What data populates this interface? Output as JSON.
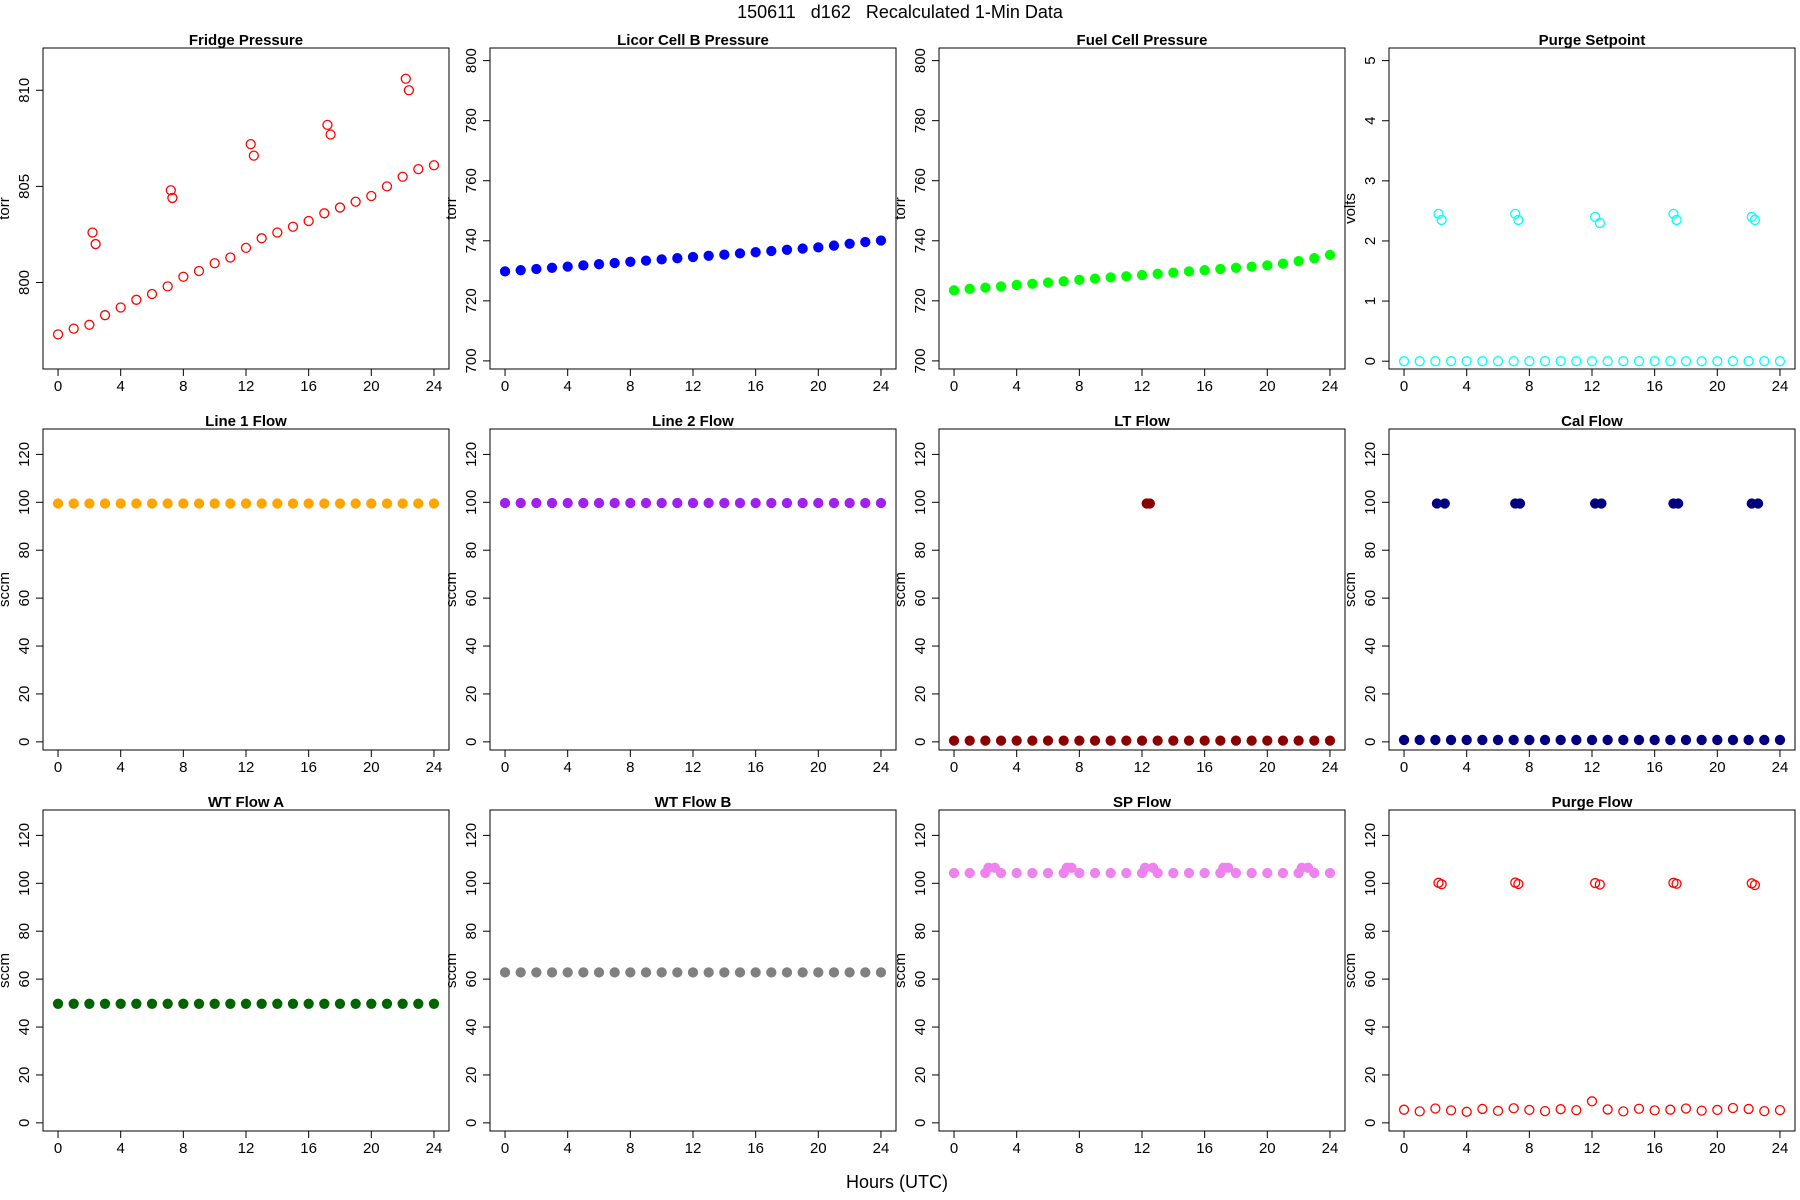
{
  "title": "150611   d162   Recalculated 1-Min Data",
  "xlabel": "Hours (UTC)",
  "chart_data": [
    {
      "type": "scatter",
      "title": "Fridge Pressure",
      "ylabel": "torr",
      "color": "#ff0000",
      "marker": "open",
      "x": [
        0,
        1,
        2,
        3,
        4,
        5,
        6,
        7,
        8,
        9,
        10,
        11,
        12,
        13,
        14,
        15,
        16,
        17,
        18,
        19,
        20,
        21,
        22,
        23,
        24,
        2.2,
        2.4,
        7.2,
        7.3,
        12.3,
        12.5,
        17.2,
        17.4,
        22.2,
        22.4
      ],
      "values": [
        797.3,
        797.6,
        797.8,
        798.3,
        798.7,
        799.1,
        799.4,
        799.8,
        800.3,
        800.6,
        801,
        801.3,
        801.8,
        802.3,
        802.6,
        802.9,
        803.2,
        803.6,
        803.9,
        804.2,
        804.5,
        805,
        805.5,
        805.9,
        806.1,
        802.6,
        802.0,
        804.8,
        804.4,
        807.2,
        806.6,
        808.2,
        807.7,
        810.6,
        810.0
      ],
      "xlim": [
        -0.96,
        24.96
      ],
      "xticks": [
        0,
        4,
        8,
        12,
        16,
        20,
        24
      ],
      "ylim": [
        795.5,
        812.2
      ],
      "yticks": [
        800,
        805,
        810
      ]
    },
    {
      "type": "scatter",
      "title": "Licor Cell B Pressure",
      "ylabel": "torr",
      "color": "#0000ff",
      "marker": "filled",
      "x": [
        0,
        1,
        2,
        3,
        4,
        5,
        6,
        7,
        8,
        9,
        10,
        11,
        12,
        13,
        14,
        15,
        16,
        17,
        18,
        19,
        20,
        21,
        22,
        23,
        24
      ],
      "values": [
        729.8,
        730.2,
        730.6,
        731.0,
        731.4,
        731.8,
        732.2,
        732.6,
        733.0,
        733.4,
        733.8,
        734.2,
        734.6,
        735.0,
        735.4,
        735.8,
        736.2,
        736.6,
        737.0,
        737.4,
        737.8,
        738.4,
        739.0,
        739.6,
        740.1
      ],
      "xlim": [
        -0.96,
        24.96
      ],
      "xticks": [
        0,
        4,
        8,
        12,
        16,
        20,
        24
      ],
      "ylim": [
        697.3,
        804.2
      ],
      "yticks": [
        700,
        720,
        740,
        760,
        780,
        800
      ]
    },
    {
      "type": "scatter",
      "title": "Fuel Cell Pressure",
      "ylabel": "torr",
      "color": "#00ff00",
      "marker": "filled",
      "x": [
        0,
        1,
        2,
        3,
        4,
        5,
        6,
        7,
        8,
        9,
        10,
        11,
        12,
        13,
        14,
        15,
        16,
        17,
        18,
        19,
        20,
        21,
        22,
        23,
        24
      ],
      "values": [
        723.5,
        724.0,
        724.4,
        724.8,
        725.3,
        725.7,
        726.1,
        726.5,
        727.0,
        727.4,
        727.8,
        728.2,
        728.6,
        729.0,
        729.4,
        729.8,
        730.2,
        730.6,
        731.0,
        731.4,
        731.8,
        732.4,
        733.2,
        734.2,
        735.3
      ],
      "xlim": [
        -0.96,
        24.96
      ],
      "xticks": [
        0,
        4,
        8,
        12,
        16,
        20,
        24
      ],
      "ylim": [
        697.3,
        804.2
      ],
      "yticks": [
        700,
        720,
        740,
        760,
        780,
        800
      ]
    },
    {
      "type": "scatter",
      "title": "Purge Setpoint",
      "ylabel": "volts",
      "color": "#00ffff",
      "marker": "open",
      "x": [
        0,
        1,
        2,
        3,
        4,
        5,
        6,
        7,
        8,
        9,
        10,
        11,
        12,
        13,
        14,
        15,
        16,
        17,
        18,
        19,
        20,
        21,
        22,
        23,
        24,
        2.2,
        2.4,
        7.1,
        7.3,
        12.2,
        12.5,
        17.2,
        17.4,
        22.2,
        22.4
      ],
      "values": [
        0,
        0,
        0,
        0,
        0,
        0,
        0,
        0,
        0,
        0,
        0,
        0,
        0,
        0,
        0,
        0,
        0,
        0,
        0,
        0,
        0,
        0,
        0,
        0,
        0,
        2.45,
        2.35,
        2.45,
        2.35,
        2.4,
        2.3,
        2.45,
        2.35,
        2.4,
        2.35
      ],
      "xlim": [
        -0.96,
        24.96
      ],
      "xticks": [
        0,
        4,
        8,
        12,
        16,
        20,
        24
      ],
      "ylim": [
        -0.13,
        5.21
      ],
      "yticks": [
        0,
        1,
        2,
        3,
        4,
        5
      ]
    },
    {
      "type": "scatter",
      "title": "Line 1 Flow",
      "ylabel": "sccm",
      "color": "#ffa500",
      "marker": "filled",
      "x": [
        0,
        1,
        2,
        3,
        4,
        5,
        6,
        7,
        8,
        9,
        10,
        11,
        12,
        13,
        14,
        15,
        16,
        17,
        18,
        19,
        20,
        21,
        22,
        23,
        24
      ],
      "values": [
        99.5,
        99.5,
        99.5,
        99.5,
        99.5,
        99.5,
        99.5,
        99.5,
        99.5,
        99.5,
        99.5,
        99.5,
        99.5,
        99.5,
        99.5,
        99.5,
        99.5,
        99.5,
        99.5,
        99.5,
        99.5,
        99.5,
        99.5,
        99.5,
        99.5
      ],
      "xlim": [
        -0.96,
        24.96
      ],
      "xticks": [
        0,
        4,
        8,
        12,
        16,
        20,
        24
      ],
      "ylim": [
        -3.4,
        130.6
      ],
      "yticks": [
        0,
        20,
        40,
        60,
        80,
        100,
        120
      ]
    },
    {
      "type": "scatter",
      "title": "Line 2 Flow",
      "ylabel": "sccm",
      "color": "#a020f0",
      "marker": "filled",
      "x": [
        0,
        1,
        2,
        3,
        4,
        5,
        6,
        7,
        8,
        9,
        10,
        11,
        12,
        13,
        14,
        15,
        16,
        17,
        18,
        19,
        20,
        21,
        22,
        23,
        24
      ],
      "values": [
        99.7,
        99.7,
        99.7,
        99.7,
        99.7,
        99.7,
        99.7,
        99.7,
        99.7,
        99.7,
        99.7,
        99.7,
        99.7,
        99.7,
        99.7,
        99.7,
        99.7,
        99.7,
        99.7,
        99.7,
        99.7,
        99.7,
        99.7,
        99.7,
        99.7
      ],
      "xlim": [
        -0.96,
        24.96
      ],
      "xticks": [
        0,
        4,
        8,
        12,
        16,
        20,
        24
      ],
      "ylim": [
        -3.4,
        130.6
      ],
      "yticks": [
        0,
        20,
        40,
        60,
        80,
        100,
        120
      ]
    },
    {
      "type": "scatter",
      "title": "LT Flow",
      "ylabel": "sccm",
      "color": "#8b0000",
      "marker": "filled",
      "x": [
        0,
        1,
        2,
        3,
        4,
        5,
        6,
        7,
        8,
        9,
        10,
        11,
        12,
        13,
        14,
        15,
        16,
        17,
        18,
        19,
        20,
        21,
        22,
        23,
        24,
        12.3,
        12.5
      ],
      "values": [
        0.5,
        0.5,
        0.5,
        0.5,
        0.5,
        0.5,
        0.5,
        0.5,
        0.5,
        0.5,
        0.5,
        0.5,
        0.5,
        0.5,
        0.5,
        0.5,
        0.5,
        0.5,
        0.5,
        0.5,
        0.5,
        0.5,
        0.5,
        0.5,
        0.5,
        99.5,
        99.5
      ],
      "xlim": [
        -0.96,
        24.96
      ],
      "xticks": [
        0,
        4,
        8,
        12,
        16,
        20,
        24
      ],
      "ylim": [
        -3.4,
        130.6
      ],
      "yticks": [
        0,
        20,
        40,
        60,
        80,
        100,
        120
      ]
    },
    {
      "type": "scatter",
      "title": "Cal Flow",
      "ylabel": "sccm",
      "color": "#000080",
      "marker": "filled",
      "x": [
        0,
        1,
        2,
        3,
        4,
        5,
        6,
        7,
        8,
        9,
        10,
        11,
        12,
        13,
        14,
        15,
        16,
        17,
        18,
        19,
        20,
        21,
        22,
        23,
        24,
        2.1,
        2.6,
        7.1,
        7.4,
        12.2,
        12.6,
        17.2,
        17.5,
        22.2,
        22.6
      ],
      "values": [
        0.8,
        0.8,
        0.8,
        0.8,
        0.8,
        0.8,
        0.8,
        0.8,
        0.8,
        0.8,
        0.8,
        0.8,
        0.8,
        0.8,
        0.8,
        0.8,
        0.8,
        0.8,
        0.8,
        0.8,
        0.8,
        0.8,
        0.8,
        0.8,
        0.8,
        99.5,
        99.5,
        99.5,
        99.5,
        99.5,
        99.5,
        99.5,
        99.5,
        99.5,
        99.5
      ],
      "xlim": [
        -0.96,
        24.96
      ],
      "xticks": [
        0,
        4,
        8,
        12,
        16,
        20,
        24
      ],
      "ylim": [
        -3.4,
        130.6
      ],
      "yticks": [
        0,
        20,
        40,
        60,
        80,
        100,
        120
      ]
    },
    {
      "type": "scatter",
      "title": "WT Flow A",
      "ylabel": "sccm",
      "color": "#006400",
      "marker": "filled",
      "x": [
        0,
        1,
        2,
        3,
        4,
        5,
        6,
        7,
        8,
        9,
        10,
        11,
        12,
        13,
        14,
        15,
        16,
        17,
        18,
        19,
        20,
        21,
        22,
        23,
        24
      ],
      "values": [
        49.7,
        49.7,
        49.7,
        49.7,
        49.7,
        49.7,
        49.7,
        49.7,
        49.7,
        49.7,
        49.7,
        49.7,
        49.7,
        49.7,
        49.7,
        49.7,
        49.7,
        49.7,
        49.7,
        49.7,
        49.7,
        49.7,
        49.7,
        49.7,
        49.7
      ],
      "xlim": [
        -0.96,
        24.96
      ],
      "xticks": [
        0,
        4,
        8,
        12,
        16,
        20,
        24
      ],
      "ylim": [
        -3.4,
        130.6
      ],
      "yticks": [
        0,
        20,
        40,
        60,
        80,
        100,
        120
      ]
    },
    {
      "type": "scatter",
      "title": "WT Flow B",
      "ylabel": "sccm",
      "color": "#808080",
      "marker": "filled",
      "x": [
        0,
        1,
        2,
        3,
        4,
        5,
        6,
        7,
        8,
        9,
        10,
        11,
        12,
        13,
        14,
        15,
        16,
        17,
        18,
        19,
        20,
        21,
        22,
        23,
        24
      ],
      "values": [
        62.8,
        62.8,
        62.8,
        62.8,
        62.8,
        62.8,
        62.8,
        62.8,
        62.8,
        62.8,
        62.8,
        62.8,
        62.8,
        62.8,
        62.8,
        62.8,
        62.8,
        62.8,
        62.8,
        62.8,
        62.8,
        62.8,
        62.8,
        62.8,
        62.8
      ],
      "xlim": [
        -0.96,
        24.96
      ],
      "xticks": [
        0,
        4,
        8,
        12,
        16,
        20,
        24
      ],
      "ylim": [
        -3.4,
        130.6
      ],
      "yticks": [
        0,
        20,
        40,
        60,
        80,
        100,
        120
      ]
    },
    {
      "type": "scatter",
      "title": "SP Flow",
      "ylabel": "sccm",
      "color": "#ee82ee",
      "marker": "filled",
      "x": [
        0,
        1,
        2,
        3,
        4,
        5,
        6,
        7,
        8,
        9,
        10,
        11,
        12,
        13,
        14,
        15,
        16,
        17,
        18,
        19,
        20,
        21,
        22,
        23,
        24,
        2.2,
        2.6,
        7.2,
        7.5,
        12.2,
        12.7,
        17.2,
        17.5,
        22.2,
        22.6
      ],
      "values": [
        104.3,
        104.3,
        104.3,
        104.3,
        104.3,
        104.3,
        104.3,
        104.3,
        104.3,
        104.3,
        104.3,
        104.3,
        104.3,
        104.3,
        104.3,
        104.3,
        104.3,
        104.3,
        104.3,
        104.3,
        104.3,
        104.3,
        104.3,
        104.3,
        104.3,
        106.5,
        106.5,
        106.5,
        106.5,
        106.5,
        106.5,
        106.5,
        106.5,
        106.5,
        106.5
      ],
      "xlim": [
        -0.96,
        24.96
      ],
      "xticks": [
        0,
        4,
        8,
        12,
        16,
        20,
        24
      ],
      "ylim": [
        -3.4,
        130.6
      ],
      "yticks": [
        0,
        20,
        40,
        60,
        80,
        100,
        120
      ]
    },
    {
      "type": "scatter",
      "title": "Purge Flow",
      "ylabel": "sccm",
      "color": "#ff0000",
      "marker": "open",
      "x": [
        0,
        1,
        2,
        3,
        4,
        5,
        6,
        7,
        8,
        9,
        10,
        11,
        12,
        13,
        14,
        15,
        16,
        17,
        18,
        19,
        20,
        21,
        22,
        23,
        24,
        2.2,
        2.4,
        7.1,
        7.3,
        12.2,
        12.5,
        17.2,
        17.4,
        22.2,
        22.4
      ],
      "values": [
        5.5,
        4.8,
        6,
        5.2,
        4.6,
        5.8,
        5,
        6.1,
        5.4,
        4.9,
        5.7,
        5.3,
        9,
        5.6,
        4.8,
        5.9,
        5.2,
        5.5,
        6,
        5.1,
        5.4,
        6.2,
        5.8,
        4.9,
        5.3,
        100.2,
        99.6,
        100.3,
        99.7,
        100.1,
        99.5,
        100.2,
        99.8,
        100.0,
        99.3
      ],
      "xlim": [
        -0.96,
        24.96
      ],
      "xticks": [
        0,
        4,
        8,
        12,
        16,
        20,
        24
      ],
      "ylim": [
        -3.4,
        130.6
      ],
      "yticks": [
        0,
        20,
        40,
        60,
        80,
        100,
        120
      ]
    }
  ]
}
